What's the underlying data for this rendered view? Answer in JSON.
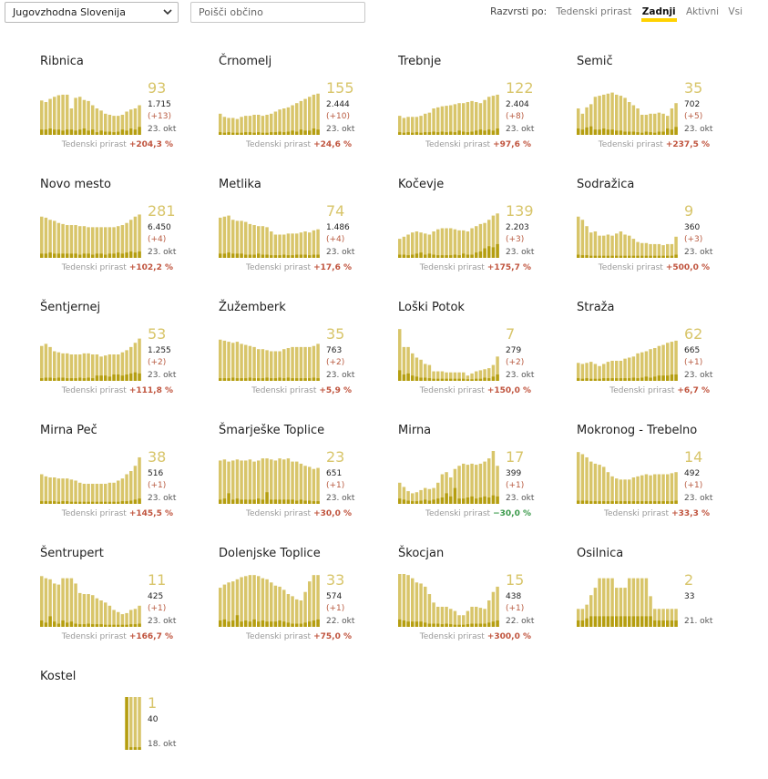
{
  "filters": {
    "region_selected": "Jugovzhodna Slovenija",
    "search_placeholder": "Poišči občino"
  },
  "sort": {
    "label": "Razvrsti po:",
    "options": [
      "Tedenski prirast",
      "Zadnji",
      "Aktivni",
      "Vsi"
    ],
    "active": "Zadnji"
  },
  "colors": {
    "bar": "#d8c56a",
    "bar_dark": "#b59e10",
    "accent": "#ffd200",
    "up": "#c0543e",
    "down": "#3a9a4a"
  },
  "footer_label": "Tedenski prirast",
  "municipalities": [
    {
      "name": "Ribnica",
      "active": "93",
      "total": "1.715",
      "delta": "(+13)",
      "date": "23. okt",
      "growth": "+204,3 %",
      "trend": "up",
      "bars": [
        0.65,
        0.62,
        0.68,
        0.72,
        0.75,
        0.76,
        0.76,
        0.5,
        0.7,
        0.72,
        0.66,
        0.64,
        0.56,
        0.5,
        0.46,
        0.4,
        0.38,
        0.36,
        0.36,
        0.38,
        0.44,
        0.48,
        0.5,
        0.56
      ],
      "inner": [
        0.1,
        0.1,
        0.12,
        0.1,
        0.1,
        0.08,
        0.1,
        0.1,
        0.08,
        0.1,
        0.12,
        0.08,
        0.1,
        0.05,
        0.08,
        0.06,
        0.06,
        0.05,
        0.06,
        0.1,
        0.08,
        0.12,
        0.1,
        0.15
      ]
    },
    {
      "name": "Črnomelj",
      "active": "155",
      "total": "2.444",
      "delta": "(+10)",
      "date": "23. okt",
      "growth": "+24,6 %",
      "trend": "up",
      "bars": [
        0.4,
        0.34,
        0.32,
        0.32,
        0.3,
        0.34,
        0.36,
        0.36,
        0.38,
        0.38,
        0.36,
        0.38,
        0.4,
        0.44,
        0.48,
        0.5,
        0.52,
        0.56,
        0.6,
        0.64,
        0.68,
        0.72,
        0.76,
        0.78
      ],
      "inner": [
        0.05,
        0.04,
        0.05,
        0.04,
        0.04,
        0.04,
        0.05,
        0.05,
        0.04,
        0.05,
        0.04,
        0.04,
        0.05,
        0.05,
        0.06,
        0.05,
        0.06,
        0.08,
        0.06,
        0.1,
        0.08,
        0.08,
        0.12,
        0.1
      ]
    },
    {
      "name": "Trebnje",
      "active": "122",
      "total": "2.404",
      "delta": "(+8)",
      "date": "23. okt",
      "growth": "+97,6 %",
      "trend": "up",
      "bars": [
        0.36,
        0.32,
        0.34,
        0.34,
        0.34,
        0.36,
        0.4,
        0.42,
        0.5,
        0.52,
        0.54,
        0.55,
        0.56,
        0.58,
        0.6,
        0.6,
        0.62,
        0.64,
        0.62,
        0.6,
        0.66,
        0.72,
        0.74,
        0.76
      ],
      "inner": [
        0.05,
        0.04,
        0.05,
        0.04,
        0.05,
        0.04,
        0.05,
        0.05,
        0.06,
        0.05,
        0.06,
        0.05,
        0.06,
        0.05,
        0.08,
        0.06,
        0.05,
        0.06,
        0.08,
        0.1,
        0.08,
        0.1,
        0.08,
        0.12
      ]
    },
    {
      "name": "Semič",
      "active": "35",
      "total": "702",
      "delta": "(+5)",
      "date": "23. okt",
      "growth": "+237,5 %",
      "trend": "up",
      "bars": [
        0.5,
        0.4,
        0.52,
        0.58,
        0.72,
        0.74,
        0.76,
        0.78,
        0.8,
        0.76,
        0.74,
        0.7,
        0.62,
        0.56,
        0.5,
        0.38,
        0.38,
        0.4,
        0.4,
        0.42,
        0.4,
        0.36,
        0.5,
        0.6
      ],
      "inner": [
        0.12,
        0.1,
        0.14,
        0.16,
        0.1,
        0.1,
        0.12,
        0.1,
        0.1,
        0.08,
        0.08,
        0.06,
        0.06,
        0.06,
        0.05,
        0.04,
        0.06,
        0.05,
        0.04,
        0.06,
        0.06,
        0.12,
        0.1,
        0.15
      ]
    },
    {
      "name": "Novo mesto",
      "active": "281",
      "total": "6.450",
      "delta": "(+4)",
      "date": "23. okt",
      "growth": "+102,2 %",
      "trend": "up",
      "bars": [
        0.78,
        0.76,
        0.72,
        0.7,
        0.66,
        0.64,
        0.62,
        0.62,
        0.62,
        0.6,
        0.6,
        0.58,
        0.58,
        0.58,
        0.58,
        0.58,
        0.58,
        0.58,
        0.6,
        0.62,
        0.66,
        0.72,
        0.78,
        0.82
      ],
      "inner": [
        0.08,
        0.08,
        0.1,
        0.08,
        0.08,
        0.08,
        0.08,
        0.08,
        0.08,
        0.06,
        0.08,
        0.08,
        0.06,
        0.08,
        0.08,
        0.06,
        0.08,
        0.08,
        0.1,
        0.08,
        0.1,
        0.12,
        0.1,
        0.12
      ]
    },
    {
      "name": "Metlika",
      "active": "74",
      "total": "1.486",
      "delta": "(+4)",
      "date": "23. okt",
      "growth": "+17,6 %",
      "trend": "up",
      "bars": [
        0.76,
        0.78,
        0.8,
        0.72,
        0.7,
        0.7,
        0.68,
        0.64,
        0.62,
        0.6,
        0.6,
        0.58,
        0.5,
        0.44,
        0.44,
        0.44,
        0.46,
        0.46,
        0.46,
        0.48,
        0.5,
        0.48,
        0.52,
        0.54
      ],
      "inner": [
        0.08,
        0.08,
        0.1,
        0.08,
        0.08,
        0.08,
        0.06,
        0.06,
        0.06,
        0.08,
        0.06,
        0.06,
        0.05,
        0.05,
        0.05,
        0.06,
        0.05,
        0.05,
        0.06,
        0.06,
        0.06,
        0.05,
        0.06,
        0.06
      ]
    },
    {
      "name": "Kočevje",
      "active": "139",
      "total": "2.203",
      "delta": "(+3)",
      "date": "23. okt",
      "growth": "+175,7 %",
      "trend": "up",
      "bars": [
        0.36,
        0.4,
        0.44,
        0.48,
        0.5,
        0.48,
        0.46,
        0.44,
        0.5,
        0.54,
        0.56,
        0.56,
        0.56,
        0.54,
        0.52,
        0.52,
        0.5,
        0.56,
        0.6,
        0.64,
        0.66,
        0.72,
        0.8,
        0.84
      ],
      "inner": [
        0.06,
        0.06,
        0.05,
        0.06,
        0.08,
        0.1,
        0.06,
        0.08,
        0.06,
        0.05,
        0.05,
        0.05,
        0.05,
        0.06,
        0.05,
        0.08,
        0.06,
        0.06,
        0.1,
        0.12,
        0.18,
        0.22,
        0.2,
        0.26
      ]
    },
    {
      "name": "Sodražica",
      "active": "9",
      "total": "360",
      "delta": "(+3)",
      "date": "23. okt",
      "growth": "+500,0 %",
      "trend": "up",
      "bars": [
        0.78,
        0.72,
        0.6,
        0.48,
        0.5,
        0.42,
        0.42,
        0.44,
        0.42,
        0.46,
        0.5,
        0.44,
        0.42,
        0.36,
        0.3,
        0.28,
        0.28,
        0.26,
        0.26,
        0.26,
        0.24,
        0.26,
        0.26,
        0.4
      ],
      "inner": [
        0.06,
        0.05,
        0.05,
        0.04,
        0.04,
        0.04,
        0.04,
        0.04,
        0.04,
        0.04,
        0.04,
        0.04,
        0.04,
        0.04,
        0.04,
        0.04,
        0.04,
        0.04,
        0.04,
        0.04,
        0.04,
        0.04,
        0.04,
        0.06
      ]
    },
    {
      "name": "Šentjernej",
      "active": "53",
      "total": "1.255",
      "delta": "(+2)",
      "date": "23. okt",
      "growth": "+111,8 %",
      "trend": "up",
      "bars": [
        0.66,
        0.7,
        0.64,
        0.56,
        0.54,
        0.52,
        0.52,
        0.5,
        0.5,
        0.5,
        0.52,
        0.52,
        0.5,
        0.5,
        0.46,
        0.48,
        0.5,
        0.5,
        0.5,
        0.54,
        0.58,
        0.64,
        0.72,
        0.8
      ],
      "inner": [
        0.05,
        0.06,
        0.06,
        0.05,
        0.06,
        0.06,
        0.05,
        0.05,
        0.05,
        0.06,
        0.05,
        0.06,
        0.05,
        0.1,
        0.1,
        0.1,
        0.08,
        0.12,
        0.12,
        0.1,
        0.12,
        0.14,
        0.16,
        0.14
      ]
    },
    {
      "name": "Žužemberk",
      "active": "35",
      "total": "763",
      "delta": "(+2)",
      "date": "23. okt",
      "growth": "+5,9 %",
      "trend": "up",
      "bars": [
        0.78,
        0.76,
        0.74,
        0.72,
        0.74,
        0.7,
        0.68,
        0.66,
        0.64,
        0.6,
        0.6,
        0.58,
        0.56,
        0.56,
        0.56,
        0.6,
        0.62,
        0.64,
        0.64,
        0.64,
        0.64,
        0.64,
        0.66,
        0.7
      ],
      "inner": [
        0.05,
        0.05,
        0.05,
        0.06,
        0.05,
        0.05,
        0.05,
        0.06,
        0.05,
        0.05,
        0.05,
        0.06,
        0.05,
        0.05,
        0.06,
        0.05,
        0.06,
        0.05,
        0.05,
        0.05,
        0.05,
        0.05,
        0.06,
        0.05
      ]
    },
    {
      "name": "Loški Potok",
      "active": "7",
      "total": "279",
      "delta": "(+2)",
      "date": "23. okt",
      "growth": "+150,0 %",
      "trend": "up",
      "bars": [
        0.98,
        0.64,
        0.64,
        0.52,
        0.44,
        0.4,
        0.32,
        0.3,
        0.18,
        0.18,
        0.18,
        0.16,
        0.16,
        0.16,
        0.16,
        0.16,
        0.1,
        0.14,
        0.18,
        0.2,
        0.22,
        0.24,
        0.3,
        0.46
      ],
      "inner": [
        0.2,
        0.12,
        0.14,
        0.1,
        0.08,
        0.06,
        0.06,
        0.05,
        0.04,
        0.04,
        0.04,
        0.04,
        0.04,
        0.04,
        0.04,
        0.04,
        0.03,
        0.03,
        0.04,
        0.04,
        0.06,
        0.05,
        0.08,
        0.12
      ]
    },
    {
      "name": "Straža",
      "active": "62",
      "total": "665",
      "delta": "(+1)",
      "date": "23. okt",
      "growth": "+6,7 %",
      "trend": "up",
      "bars": [
        0.34,
        0.32,
        0.34,
        0.36,
        0.32,
        0.28,
        0.32,
        0.36,
        0.38,
        0.38,
        0.38,
        0.42,
        0.44,
        0.46,
        0.52,
        0.54,
        0.56,
        0.6,
        0.62,
        0.66,
        0.68,
        0.72,
        0.74,
        0.76
      ],
      "inner": [
        0.05,
        0.04,
        0.05,
        0.04,
        0.04,
        0.04,
        0.05,
        0.05,
        0.05,
        0.05,
        0.05,
        0.05,
        0.05,
        0.06,
        0.05,
        0.06,
        0.08,
        0.06,
        0.08,
        0.1,
        0.1,
        0.1,
        0.12,
        0.12
      ]
    },
    {
      "name": "Mirna Peč",
      "active": "38",
      "total": "516",
      "delta": "(+1)",
      "date": "23. okt",
      "growth": "+145,5 %",
      "trend": "up",
      "bars": [
        0.56,
        0.52,
        0.5,
        0.5,
        0.48,
        0.48,
        0.48,
        0.46,
        0.44,
        0.4,
        0.38,
        0.38,
        0.38,
        0.38,
        0.38,
        0.38,
        0.4,
        0.4,
        0.44,
        0.48,
        0.56,
        0.62,
        0.72,
        0.88
      ],
      "inner": [
        0.05,
        0.05,
        0.05,
        0.05,
        0.04,
        0.05,
        0.05,
        0.04,
        0.04,
        0.04,
        0.04,
        0.04,
        0.04,
        0.04,
        0.04,
        0.04,
        0.04,
        0.04,
        0.04,
        0.05,
        0.05,
        0.06,
        0.08,
        0.1
      ]
    },
    {
      "name": "Šmarješke Toplice",
      "active": "23",
      "total": "651",
      "delta": "(+1)",
      "date": "23. okt",
      "growth": "+30,0 %",
      "trend": "up",
      "bars": [
        0.82,
        0.84,
        0.8,
        0.82,
        0.84,
        0.82,
        0.82,
        0.84,
        0.8,
        0.82,
        0.86,
        0.86,
        0.84,
        0.82,
        0.86,
        0.84,
        0.86,
        0.8,
        0.8,
        0.76,
        0.72,
        0.7,
        0.66,
        0.68
      ],
      "inner": [
        0.08,
        0.1,
        0.2,
        0.08,
        0.1,
        0.08,
        0.08,
        0.08,
        0.08,
        0.1,
        0.08,
        0.22,
        0.08,
        0.08,
        0.08,
        0.08,
        0.08,
        0.08,
        0.06,
        0.08,
        0.06,
        0.06,
        0.05,
        0.05
      ]
    },
    {
      "name": "Mirna",
      "active": "17",
      "total": "399",
      "delta": "(+1)",
      "date": "23. okt",
      "growth": "−30,0 %",
      "trend": "down",
      "bars": [
        0.4,
        0.32,
        0.24,
        0.2,
        0.22,
        0.26,
        0.3,
        0.28,
        0.3,
        0.4,
        0.56,
        0.6,
        0.5,
        0.66,
        0.72,
        0.76,
        0.74,
        0.76,
        0.74,
        0.76,
        0.8,
        0.86,
        1.0,
        0.72
      ],
      "inner": [
        0.1,
        0.08,
        0.06,
        0.05,
        0.05,
        0.06,
        0.08,
        0.06,
        0.08,
        0.1,
        0.12,
        0.2,
        0.14,
        0.3,
        0.1,
        0.1,
        0.12,
        0.14,
        0.1,
        0.12,
        0.14,
        0.12,
        0.16,
        0.14
      ]
    },
    {
      "name": "Mokronog - Trebelno",
      "active": "14",
      "total": "492",
      "delta": "(+1)",
      "date": "23. okt",
      "growth": "+33,3 %",
      "trend": "up",
      "bars": [
        0.98,
        0.94,
        0.88,
        0.8,
        0.76,
        0.74,
        0.7,
        0.6,
        0.52,
        0.48,
        0.46,
        0.46,
        0.46,
        0.5,
        0.52,
        0.54,
        0.56,
        0.54,
        0.56,
        0.56,
        0.56,
        0.56,
        0.58,
        0.6
      ],
      "inner": [
        0.06,
        0.06,
        0.06,
        0.05,
        0.05,
        0.05,
        0.05,
        0.05,
        0.05,
        0.05,
        0.05,
        0.05,
        0.05,
        0.05,
        0.05,
        0.05,
        0.05,
        0.05,
        0.05,
        0.05,
        0.05,
        0.05,
        0.05,
        0.06
      ]
    },
    {
      "name": "Šentrupert",
      "active": "11",
      "total": "425",
      "delta": "(+1)",
      "date": "23. okt",
      "growth": "+166,7 %",
      "trend": "up",
      "bars": [
        0.96,
        0.92,
        0.9,
        0.82,
        0.8,
        0.92,
        0.92,
        0.92,
        0.82,
        0.64,
        0.62,
        0.62,
        0.6,
        0.54,
        0.5,
        0.46,
        0.4,
        0.32,
        0.28,
        0.24,
        0.26,
        0.32,
        0.34,
        0.4
      ],
      "inner": [
        0.12,
        0.08,
        0.2,
        0.1,
        0.06,
        0.12,
        0.08,
        0.1,
        0.06,
        0.05,
        0.05,
        0.06,
        0.05,
        0.05,
        0.05,
        0.04,
        0.04,
        0.04,
        0.04,
        0.04,
        0.04,
        0.05,
        0.05,
        0.06
      ]
    },
    {
      "name": "Dolenjske Toplice",
      "active": "33",
      "total": "574",
      "delta": "(+1)",
      "date": "22. okt",
      "growth": "+75,0 %",
      "trend": "up",
      "bars": [
        0.74,
        0.8,
        0.84,
        0.86,
        0.9,
        0.94,
        0.96,
        0.98,
        0.98,
        0.96,
        0.92,
        0.9,
        0.84,
        0.78,
        0.76,
        0.7,
        0.62,
        0.58,
        0.52,
        0.5,
        0.66,
        0.86,
        0.98,
        0.98
      ],
      "inner": [
        0.12,
        0.14,
        0.1,
        0.12,
        0.22,
        0.1,
        0.12,
        0.1,
        0.14,
        0.1,
        0.12,
        0.1,
        0.1,
        0.1,
        0.12,
        0.1,
        0.08,
        0.06,
        0.06,
        0.06,
        0.08,
        0.1,
        0.12,
        0.14
      ]
    },
    {
      "name": "Škocjan",
      "active": "15",
      "total": "438",
      "delta": "(+1)",
      "date": "22. okt",
      "growth": "+300,0 %",
      "trend": "up",
      "bars": [
        1.0,
        1.0,
        0.98,
        0.92,
        0.84,
        0.82,
        0.76,
        0.62,
        0.46,
        0.38,
        0.38,
        0.38,
        0.34,
        0.3,
        0.22,
        0.22,
        0.3,
        0.38,
        0.38,
        0.36,
        0.34,
        0.5,
        0.66,
        0.76
      ],
      "inner": [
        0.14,
        0.12,
        0.1,
        0.1,
        0.1,
        0.1,
        0.08,
        0.06,
        0.06,
        0.06,
        0.05,
        0.06,
        0.05,
        0.04,
        0.04,
        0.04,
        0.05,
        0.06,
        0.06,
        0.06,
        0.06,
        0.08,
        0.1,
        0.12
      ]
    },
    {
      "name": "Osilnica",
      "active": "2",
      "total": "33",
      "delta": "",
      "date": "21. okt",
      "growth": "",
      "trend": "up",
      "bars": [
        0.34,
        0.34,
        0.42,
        0.6,
        0.74,
        0.92,
        0.92,
        0.92,
        0.92,
        0.74,
        0.74,
        0.74,
        0.92,
        0.92,
        0.92,
        0.92,
        0.92,
        0.58,
        0.34,
        0.34,
        0.34,
        0.34,
        0.34,
        0.34
      ],
      "inner": [
        0.12,
        0.12,
        0.16,
        0.2,
        0.2,
        0.2,
        0.2,
        0.2,
        0.2,
        0.2,
        0.2,
        0.2,
        0.2,
        0.2,
        0.2,
        0.2,
        0.2,
        0.2,
        0.12,
        0.12,
        0.12,
        0.12,
        0.12,
        0.12
      ]
    },
    {
      "name": "Kostel",
      "active": "1",
      "total": "40",
      "delta": "",
      "date": "18. okt",
      "growth": "",
      "trend": "up",
      "bars": [
        0,
        0,
        0,
        0,
        0,
        0,
        0,
        0,
        0,
        0,
        0,
        0,
        0,
        0,
        0,
        0,
        0,
        0,
        0,
        0,
        1.0,
        1.0,
        1.0,
        1.0
      ],
      "inner": [
        0,
        0,
        0,
        0,
        0,
        0,
        0,
        0,
        0,
        0,
        0,
        0,
        0,
        0,
        0,
        0,
        0,
        0,
        0,
        0,
        1.0,
        0.05,
        0.05,
        0.05
      ]
    }
  ]
}
